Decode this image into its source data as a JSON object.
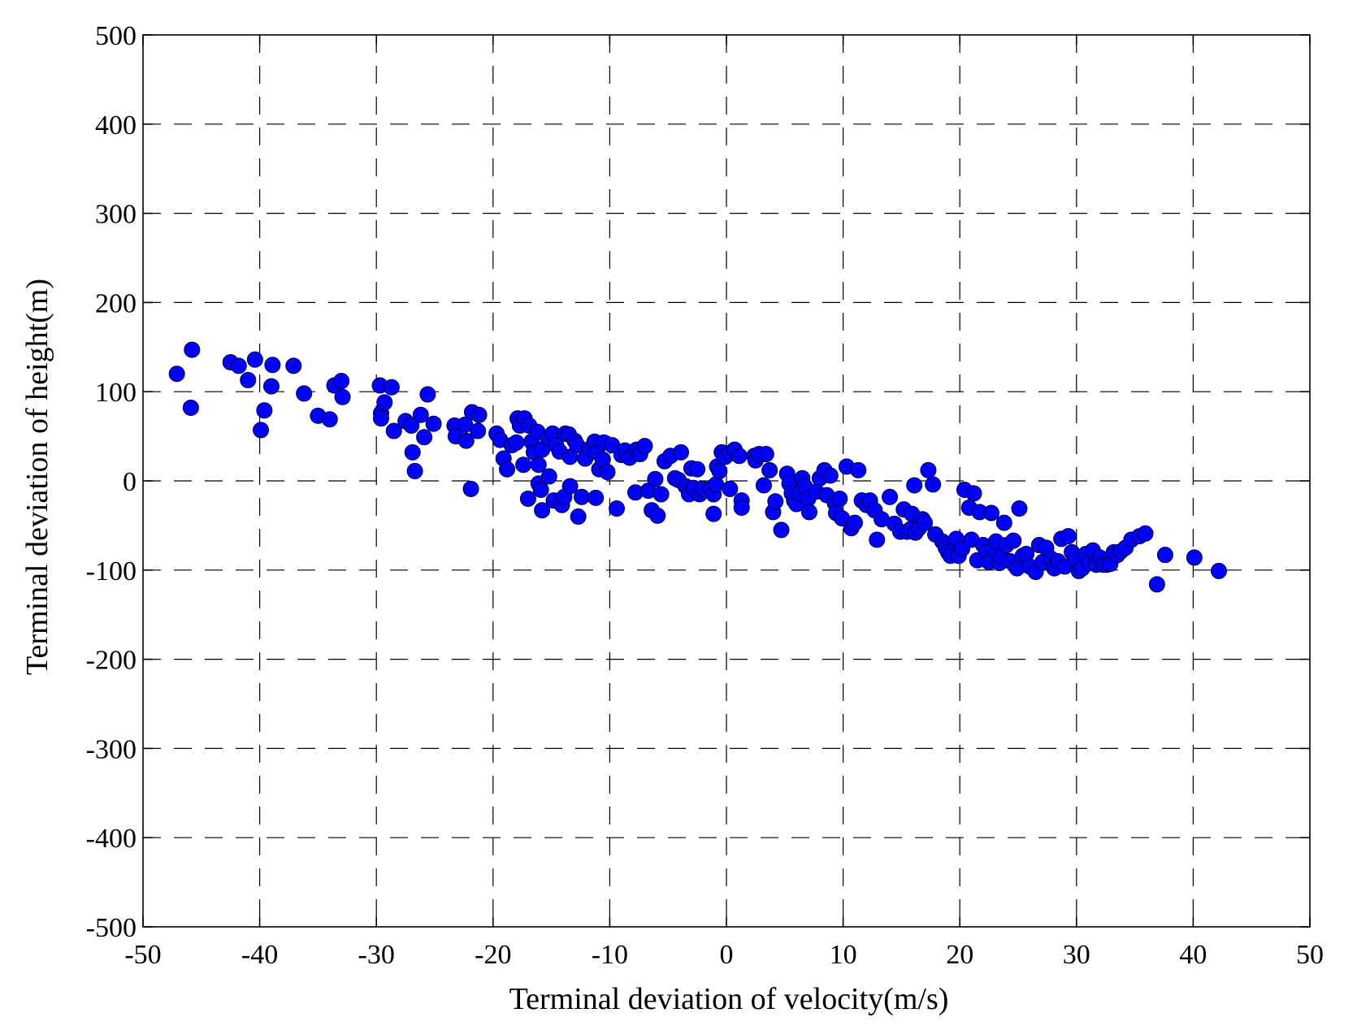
{
  "chart_data": {
    "type": "scatter",
    "xlabel": "Terminal deviation of velocity(m/s)",
    "ylabel": "Terminal deviation of height(m)",
    "xlim": [
      -50,
      50
    ],
    "ylim": [
      -500,
      500
    ],
    "xticks": [
      -50,
      -40,
      -30,
      -20,
      -10,
      0,
      10,
      20,
      30,
      40,
      50
    ],
    "yticks": [
      500,
      400,
      300,
      200,
      100,
      0,
      -100,
      -200,
      -300,
      -400,
      -500
    ],
    "xtick_labels": [
      "-50",
      "-40",
      "-30",
      "-20",
      "-10",
      "0",
      "10",
      "20",
      "30",
      "40",
      "50"
    ],
    "ytick_labels": [
      "500",
      "400",
      "300",
      "200",
      "100",
      "0",
      "-100",
      "-200",
      "-300",
      "-400",
      "-500"
    ],
    "grid": true,
    "marker_color": "#0000ff",
    "series": [
      {
        "points": [
          [
            -47.1,
            120
          ],
          [
            -45.8,
            147
          ],
          [
            -45.9,
            82
          ],
          [
            -42.5,
            133
          ],
          [
            -41.8,
            129
          ],
          [
            -41.0,
            113
          ],
          [
            -40.4,
            136
          ],
          [
            -39.6,
            79
          ],
          [
            -39.9,
            57
          ],
          [
            -39.0,
            106
          ],
          [
            -38.9,
            130
          ],
          [
            -37.1,
            129
          ],
          [
            -36.2,
            98
          ],
          [
            -35.0,
            73
          ],
          [
            -34.0,
            69
          ],
          [
            -33.6,
            107
          ],
          [
            -33.0,
            112
          ],
          [
            -32.9,
            94
          ],
          [
            -29.7,
            107
          ],
          [
            -29.6,
            76
          ],
          [
            -29.3,
            88
          ],
          [
            -29.6,
            70
          ],
          [
            -28.7,
            105
          ],
          [
            -28.5,
            56
          ],
          [
            -27.5,
            67
          ],
          [
            -27.0,
            62
          ],
          [
            -26.9,
            32
          ],
          [
            -26.7,
            11
          ],
          [
            -26.2,
            74
          ],
          [
            -25.9,
            49
          ],
          [
            -25.6,
            97
          ],
          [
            -25.1,
            64
          ],
          [
            -23.3,
            62
          ],
          [
            -23.2,
            50
          ],
          [
            -22.4,
            63
          ],
          [
            -22.3,
            45
          ],
          [
            -21.9,
            -9
          ],
          [
            -21.8,
            77
          ],
          [
            -21.3,
            56
          ],
          [
            -21.2,
            74
          ],
          [
            -19.7,
            53
          ],
          [
            -19.4,
            46
          ],
          [
            -19.1,
            25
          ],
          [
            -18.8,
            13
          ],
          [
            -18.4,
            40
          ],
          [
            -18.0,
            43
          ],
          [
            -17.9,
            70
          ],
          [
            -17.7,
            62
          ],
          [
            -17.4,
            18
          ],
          [
            -17.3,
            70
          ],
          [
            -17.0,
            -20
          ],
          [
            -16.9,
            62
          ],
          [
            -16.7,
            44
          ],
          [
            -16.5,
            32
          ],
          [
            -16.2,
            55
          ],
          [
            -16.1,
            -3
          ],
          [
            -16.1,
            18
          ],
          [
            -15.9,
            -10
          ],
          [
            -15.8,
            35
          ],
          [
            -15.8,
            -33
          ],
          [
            -15.3,
            48
          ],
          [
            -15.2,
            5
          ],
          [
            -14.9,
            53
          ],
          [
            -14.8,
            -22
          ],
          [
            -14.6,
            40
          ],
          [
            -14.3,
            33
          ],
          [
            -14.1,
            -27
          ],
          [
            -13.9,
            -18
          ],
          [
            -13.8,
            53
          ],
          [
            -13.4,
            27
          ],
          [
            -13.5,
            52
          ],
          [
            -13.4,
            -6
          ],
          [
            -13.0,
            45
          ],
          [
            -12.8,
            40
          ],
          [
            -12.7,
            -40
          ],
          [
            -12.4,
            -18
          ],
          [
            -12.1,
            25
          ],
          [
            -11.7,
            36
          ],
          [
            -11.3,
            44
          ],
          [
            -11.1,
            32
          ],
          [
            -11.2,
            -19
          ],
          [
            -10.9,
            13
          ],
          [
            -10.6,
            24
          ],
          [
            -10.5,
            43
          ],
          [
            -10.2,
            10
          ],
          [
            -9.8,
            40
          ],
          [
            -9.4,
            -31
          ],
          [
            -9.0,
            29
          ],
          [
            -8.7,
            34
          ],
          [
            -8.3,
            26
          ],
          [
            -7.8,
            -13
          ],
          [
            -7.7,
            35
          ],
          [
            -7.4,
            30
          ],
          [
            -7.0,
            39
          ],
          [
            -6.7,
            -11
          ],
          [
            -6.4,
            -33
          ],
          [
            -6.1,
            2
          ],
          [
            -5.9,
            -39
          ],
          [
            -5.6,
            -15
          ],
          [
            -5.3,
            22
          ],
          [
            -4.8,
            28
          ],
          [
            -4.4,
            3
          ],
          [
            -4.1,
            1
          ],
          [
            -3.9,
            32
          ],
          [
            -3.5,
            -6
          ],
          [
            -3.2,
            -15
          ],
          [
            -3.0,
            14
          ],
          [
            -2.8,
            -8
          ],
          [
            -2.5,
            13
          ],
          [
            -2.3,
            -15
          ],
          [
            -2.0,
            -9
          ],
          [
            -1.3,
            -9
          ],
          [
            -1.1,
            -15
          ],
          [
            -1.1,
            -37
          ],
          [
            -0.9,
            -4
          ],
          [
            -0.8,
            16
          ],
          [
            -0.6,
            11
          ],
          [
            -0.4,
            32
          ],
          [
            -0.1,
            27
          ],
          [
            0.3,
            -9
          ],
          [
            0.3,
            31
          ],
          [
            0.7,
            35
          ],
          [
            1.1,
            28
          ],
          [
            1.3,
            -22
          ],
          [
            1.3,
            -30
          ],
          [
            2.4,
            28
          ],
          [
            2.5,
            23
          ],
          [
            2.8,
            30
          ],
          [
            3.2,
            -5
          ],
          [
            3.4,
            30
          ],
          [
            3.7,
            12
          ],
          [
            4.0,
            -35
          ],
          [
            4.2,
            -23
          ],
          [
            4.7,
            -55
          ],
          [
            5.2,
            8
          ],
          [
            5.4,
            -3
          ],
          [
            5.6,
            -14
          ],
          [
            5.8,
            -22
          ],
          [
            6.0,
            -26
          ],
          [
            6.3,
            -14
          ],
          [
            6.5,
            3
          ],
          [
            6.7,
            -6
          ],
          [
            7.0,
            -20
          ],
          [
            7.1,
            -35
          ],
          [
            7.7,
            -12
          ],
          [
            8.0,
            3
          ],
          [
            8.4,
            12
          ],
          [
            8.6,
            -16
          ],
          [
            8.9,
            6
          ],
          [
            9.3,
            -25
          ],
          [
            9.4,
            -36
          ],
          [
            9.7,
            -20
          ],
          [
            9.9,
            -42
          ],
          [
            10.3,
            16
          ],
          [
            10.7,
            -53
          ],
          [
            11.0,
            -47
          ],
          [
            11.3,
            12
          ],
          [
            11.6,
            -22
          ],
          [
            12.0,
            -27
          ],
          [
            12.3,
            -22
          ],
          [
            12.7,
            -33
          ],
          [
            12.9,
            -66
          ],
          [
            13.3,
            -43
          ],
          [
            14.0,
            -18
          ],
          [
            14.4,
            -48
          ],
          [
            14.9,
            -57
          ],
          [
            15.2,
            -32
          ],
          [
            15.5,
            -57
          ],
          [
            15.9,
            -37
          ],
          [
            15.8,
            -54
          ],
          [
            16.1,
            -5
          ],
          [
            16.2,
            -58
          ],
          [
            16.5,
            -53
          ],
          [
            16.8,
            -43
          ],
          [
            17.0,
            -47
          ],
          [
            17.3,
            12
          ],
          [
            17.7,
            -4
          ],
          [
            17.9,
            -60
          ],
          [
            18.5,
            -68
          ],
          [
            18.8,
            -75
          ],
          [
            19.0,
            -80
          ],
          [
            19.2,
            -84
          ],
          [
            19.7,
            -65
          ],
          [
            19.9,
            -84
          ],
          [
            20.2,
            -76
          ],
          [
            20.4,
            -10
          ],
          [
            20.8,
            -30
          ],
          [
            21.0,
            -66
          ],
          [
            21.2,
            -14
          ],
          [
            21.5,
            -89
          ],
          [
            21.7,
            -35
          ],
          [
            22.0,
            -72
          ],
          [
            22.3,
            -80
          ],
          [
            22.5,
            -91
          ],
          [
            22.7,
            -36
          ],
          [
            22.9,
            -76
          ],
          [
            23.1,
            -68
          ],
          [
            23.4,
            -92
          ],
          [
            23.6,
            -85
          ],
          [
            23.8,
            -47
          ],
          [
            24.0,
            -72
          ],
          [
            24.3,
            -90
          ],
          [
            24.6,
            -67
          ],
          [
            24.9,
            -98
          ],
          [
            25.1,
            -31
          ],
          [
            25.4,
            -84
          ],
          [
            25.7,
            -82
          ],
          [
            26.0,
            -96
          ],
          [
            26.5,
            -102
          ],
          [
            26.8,
            -72
          ],
          [
            27.1,
            -91
          ],
          [
            27.4,
            -75
          ],
          [
            27.8,
            -87
          ],
          [
            28.1,
            -98
          ],
          [
            28.4,
            -90
          ],
          [
            28.7,
            -65
          ],
          [
            29.0,
            -96
          ],
          [
            29.3,
            -62
          ],
          [
            29.6,
            -80
          ],
          [
            29.9,
            -88
          ],
          [
            30.2,
            -101
          ],
          [
            30.5,
            -98
          ],
          [
            30.8,
            -82
          ],
          [
            31.1,
            -92
          ],
          [
            31.4,
            -78
          ],
          [
            31.7,
            -94
          ],
          [
            32.0,
            -86
          ],
          [
            32.3,
            -94
          ],
          [
            32.6,
            -94
          ],
          [
            32.9,
            -93
          ],
          [
            33.2,
            -80
          ],
          [
            33.5,
            -83
          ],
          [
            33.8,
            -79
          ],
          [
            34.2,
            -75
          ],
          [
            34.7,
            -66
          ],
          [
            35.4,
            -62
          ],
          [
            35.9,
            -59
          ],
          [
            36.9,
            -116
          ],
          [
            37.6,
            -83
          ],
          [
            40.1,
            -86
          ],
          [
            42.2,
            -101
          ]
        ]
      }
    ]
  }
}
